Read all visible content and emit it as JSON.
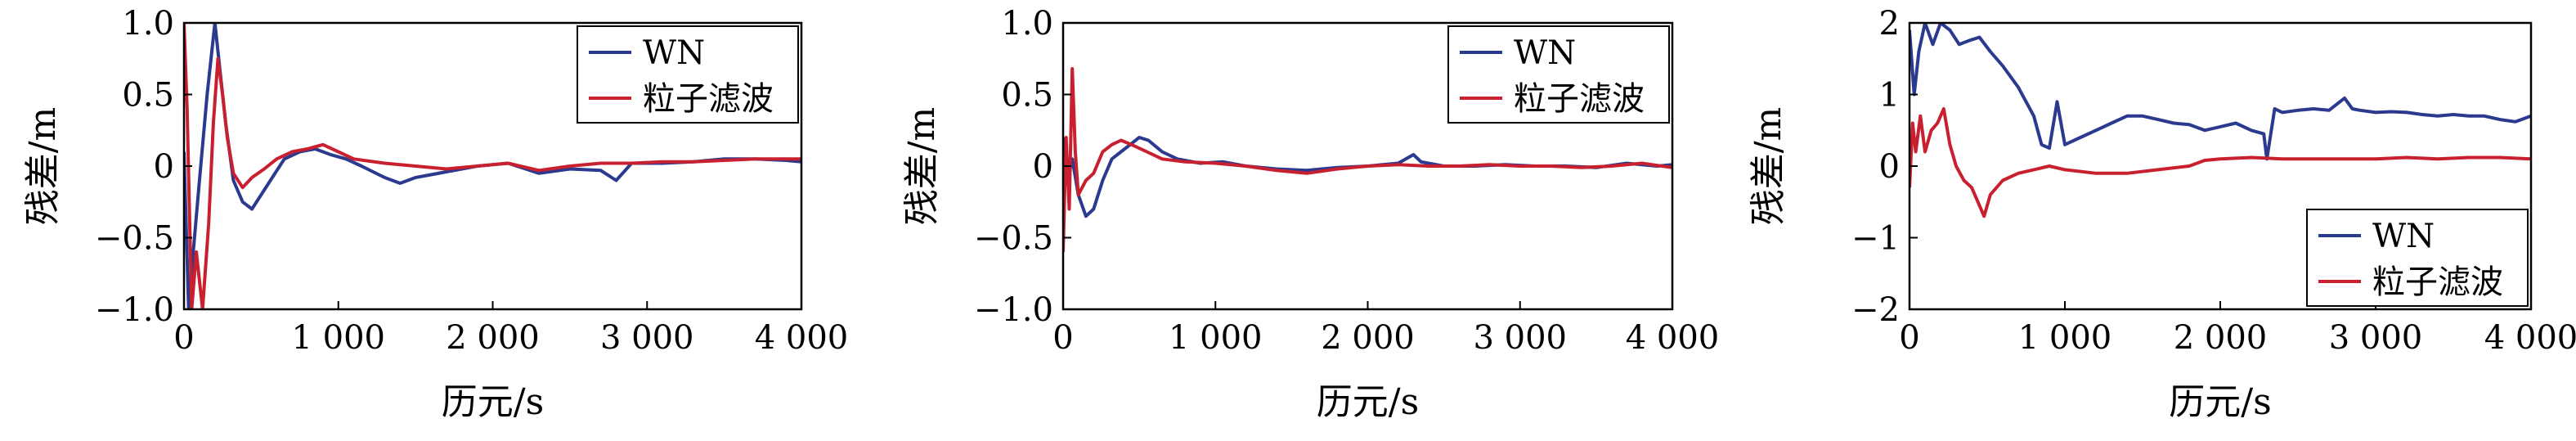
{
  "colors": {
    "WN": "#2b3a8f",
    "pf": "#c8202f"
  },
  "chart_data": [
    {
      "type": "line",
      "xlabel": "历元/s",
      "ylabel": "残差/m",
      "xlim": [
        0,
        4000
      ],
      "ylim": [
        -1.0,
        1.0
      ],
      "xticks": [
        0,
        1000,
        2000,
        3000,
        4000
      ],
      "xtick_labels": [
        "0",
        "1 000",
        "2 000",
        "3 000",
        "4 000"
      ],
      "yticks": [
        -1.0,
        -0.5,
        0,
        0.5,
        1.0
      ],
      "ytick_labels": [
        "−1.0",
        "−0.5",
        "0",
        "0.5",
        "1.0"
      ],
      "legend_position": "top-right",
      "series": [
        {
          "name": "WN",
          "color": "#2b3a8f",
          "x": [
            0,
            30,
            60,
            100,
            150,
            200,
            230,
            270,
            320,
            380,
            440,
            500,
            560,
            650,
            750,
            850,
            950,
            1050,
            1150,
            1300,
            1400,
            1500,
            1700,
            1900,
            2100,
            2300,
            2500,
            2700,
            2800,
            2900,
            3100,
            3300,
            3500,
            3700,
            3900,
            4000
          ],
          "y": [
            0.1,
            -1.0,
            -0.6,
            -0.1,
            0.5,
            1.0,
            0.7,
            0.3,
            -0.1,
            -0.25,
            -0.3,
            -0.2,
            -0.1,
            0.05,
            0.1,
            0.12,
            0.08,
            0.05,
            0.0,
            -0.08,
            -0.12,
            -0.08,
            -0.04,
            0.0,
            0.02,
            -0.05,
            -0.02,
            -0.03,
            -0.1,
            0.02,
            0.02,
            0.03,
            0.05,
            0.05,
            0.04,
            0.03
          ]
        },
        {
          "name": "粒子滤波",
          "color": "#c8202f",
          "x": [
            0,
            20,
            50,
            80,
            120,
            160,
            190,
            220,
            250,
            280,
            320,
            380,
            440,
            520,
            600,
            700,
            800,
            900,
            1000,
            1100,
            1300,
            1500,
            1700,
            1900,
            2100,
            2300,
            2500,
            2700,
            2900,
            3100,
            3300,
            3500,
            3700,
            3900,
            4000
          ],
          "y": [
            1.0,
            0.4,
            -1.0,
            -0.6,
            -1.0,
            -0.4,
            0.3,
            0.75,
            0.5,
            0.2,
            -0.05,
            -0.15,
            -0.08,
            -0.02,
            0.05,
            0.1,
            0.12,
            0.15,
            0.1,
            0.05,
            0.02,
            0.0,
            -0.02,
            0.0,
            0.02,
            -0.03,
            0.0,
            0.02,
            0.02,
            0.03,
            0.03,
            0.04,
            0.05,
            0.05,
            0.05
          ]
        }
      ]
    },
    {
      "type": "line",
      "xlabel": "历元/s",
      "ylabel": "残差/m",
      "xlim": [
        0,
        4000
      ],
      "ylim": [
        -1.0,
        1.0
      ],
      "xticks": [
        0,
        1000,
        2000,
        3000,
        4000
      ],
      "xtick_labels": [
        "0",
        "1 000",
        "2 000",
        "3 000",
        "4 000"
      ],
      "yticks": [
        -1.0,
        -0.5,
        0,
        0.5,
        1.0
      ],
      "ytick_labels": [
        "−1.0",
        "−0.5",
        "0",
        "0.5",
        "1.0"
      ],
      "legend_position": "top-right",
      "series": [
        {
          "name": "WN",
          "color": "#2b3a8f",
          "x": [
            0,
            30,
            60,
            100,
            150,
            200,
            260,
            320,
            380,
            440,
            500,
            560,
            650,
            750,
            900,
            1050,
            1200,
            1400,
            1600,
            1800,
            2000,
            2200,
            2300,
            2350,
            2500,
            2700,
            2900,
            3100,
            3300,
            3500,
            3700,
            3900,
            4000
          ],
          "y": [
            0.2,
            -0.1,
            0.05,
            -0.2,
            -0.35,
            -0.3,
            -0.1,
            0.05,
            0.1,
            0.15,
            0.2,
            0.18,
            0.1,
            0.05,
            0.02,
            0.03,
            0.0,
            -0.02,
            -0.03,
            -0.01,
            0.0,
            0.02,
            0.08,
            0.03,
            0.0,
            0.0,
            0.01,
            0.0,
            0.0,
            -0.01,
            0.02,
            0.0,
            0.01
          ]
        },
        {
          "name": "粒子滤波",
          "color": "#c8202f",
          "x": [
            0,
            20,
            40,
            60,
            80,
            100,
            150,
            200,
            260,
            320,
            380,
            450,
            550,
            650,
            800,
            1000,
            1200,
            1400,
            1600,
            1800,
            2000,
            2200,
            2400,
            2600,
            2800,
            3000,
            3200,
            3400,
            3600,
            3800,
            4000
          ],
          "y": [
            -0.6,
            0.2,
            -0.3,
            0.68,
            0.1,
            -0.2,
            -0.1,
            -0.05,
            0.1,
            0.15,
            0.18,
            0.15,
            0.1,
            0.05,
            0.03,
            0.02,
            0.0,
            -0.03,
            -0.05,
            -0.02,
            0.0,
            0.01,
            0.0,
            0.0,
            0.01,
            0.0,
            0.0,
            -0.01,
            0.0,
            0.02,
            -0.01
          ]
        }
      ]
    },
    {
      "type": "line",
      "xlabel": "历元/s",
      "ylabel": "残差/m",
      "xlim": [
        0,
        4000
      ],
      "ylim": [
        -2,
        2
      ],
      "xticks": [
        0,
        1000,
        2000,
        3000,
        4000
      ],
      "xtick_labels": [
        "0",
        "1 000",
        "2 000",
        "3 000",
        "4 000"
      ],
      "yticks": [
        -2,
        -1,
        0,
        1,
        2
      ],
      "ytick_labels": [
        "−2",
        "−1",
        "0",
        "1",
        "2"
      ],
      "legend_position": "bottom-right",
      "series": [
        {
          "name": "WN",
          "color": "#2b3a8f",
          "x": [
            0,
            30,
            60,
            100,
            150,
            200,
            260,
            320,
            380,
            450,
            520,
            600,
            700,
            800,
            850,
            900,
            950,
            1000,
            1100,
            1200,
            1300,
            1400,
            1500,
            1600,
            1700,
            1800,
            1900,
            2000,
            2100,
            2200,
            2280,
            2300,
            2350,
            2400,
            2500,
            2600,
            2700,
            2800,
            2850,
            2900,
            3000,
            3100,
            3200,
            3300,
            3400,
            3500,
            3600,
            3700,
            3800,
            3900,
            4000
          ],
          "y": [
            1.9,
            1.0,
            1.6,
            2.0,
            1.7,
            2.0,
            1.9,
            1.7,
            1.75,
            1.8,
            1.6,
            1.4,
            1.1,
            0.7,
            0.3,
            0.25,
            0.9,
            0.3,
            0.4,
            0.5,
            0.6,
            0.7,
            0.7,
            0.65,
            0.6,
            0.58,
            0.5,
            0.55,
            0.6,
            0.5,
            0.45,
            0.1,
            0.8,
            0.75,
            0.78,
            0.8,
            0.78,
            0.95,
            0.8,
            0.78,
            0.75,
            0.76,
            0.75,
            0.72,
            0.7,
            0.72,
            0.7,
            0.7,
            0.65,
            0.62,
            0.7
          ]
        },
        {
          "name": "粒子滤波",
          "color": "#c8202f",
          "x": [
            0,
            20,
            40,
            70,
            100,
            140,
            180,
            220,
            260,
            300,
            350,
            400,
            450,
            480,
            520,
            600,
            700,
            800,
            900,
            1000,
            1200,
            1400,
            1600,
            1800,
            1900,
            2000,
            2200,
            2400,
            2600,
            2800,
            3000,
            3200,
            3400,
            3600,
            3800,
            4000
          ],
          "y": [
            -0.3,
            0.6,
            0.2,
            0.7,
            0.2,
            0.5,
            0.6,
            0.8,
            0.3,
            0.0,
            -0.2,
            -0.3,
            -0.55,
            -0.7,
            -0.4,
            -0.2,
            -0.1,
            -0.05,
            0.0,
            -0.05,
            -0.1,
            -0.1,
            -0.05,
            0.0,
            0.08,
            0.1,
            0.12,
            0.1,
            0.1,
            0.1,
            0.1,
            0.12,
            0.1,
            0.12,
            0.12,
            0.1
          ]
        }
      ]
    }
  ]
}
